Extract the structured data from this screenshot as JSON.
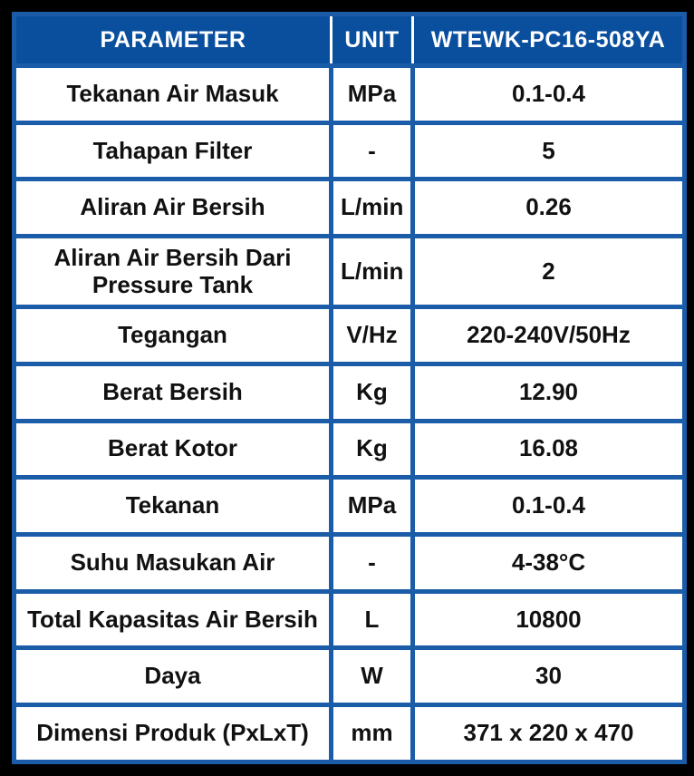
{
  "table": {
    "headers": [
      "PARAMETER",
      "UNIT",
      "WTEWK-PC16-508YA"
    ],
    "rows": [
      [
        "Tekanan Air Masuk",
        "MPa",
        "0.1-0.4"
      ],
      [
        "Tahapan Filter",
        "-",
        "5"
      ],
      [
        "Aliran Air Bersih",
        "L/min",
        "0.26"
      ],
      [
        "Aliran Air Bersih Dari Pressure Tank",
        "L/min",
        "2"
      ],
      [
        "Tegangan",
        "V/Hz",
        "220-240V/50Hz"
      ],
      [
        "Berat Bersih",
        "Kg",
        "12.90"
      ],
      [
        "Berat Kotor",
        "Kg",
        "16.08"
      ],
      [
        "Tekanan",
        "MPa",
        "0.1-0.4"
      ],
      [
        "Suhu Masukan Air",
        "-",
        "4-38°C"
      ],
      [
        "Total Kapasitas Air Bersih",
        "L",
        "10800"
      ],
      [
        "Daya",
        "W",
        "30"
      ],
      [
        "Dimensi Produk (PxLxT)",
        "mm",
        "371 x 220 x 470"
      ]
    ],
    "colors": {
      "header_background": "#0a4f9e",
      "grid_lines": "#1b5ca8",
      "frame": "#000000",
      "header_text": "#ffffff",
      "body_text": "#111111"
    }
  }
}
